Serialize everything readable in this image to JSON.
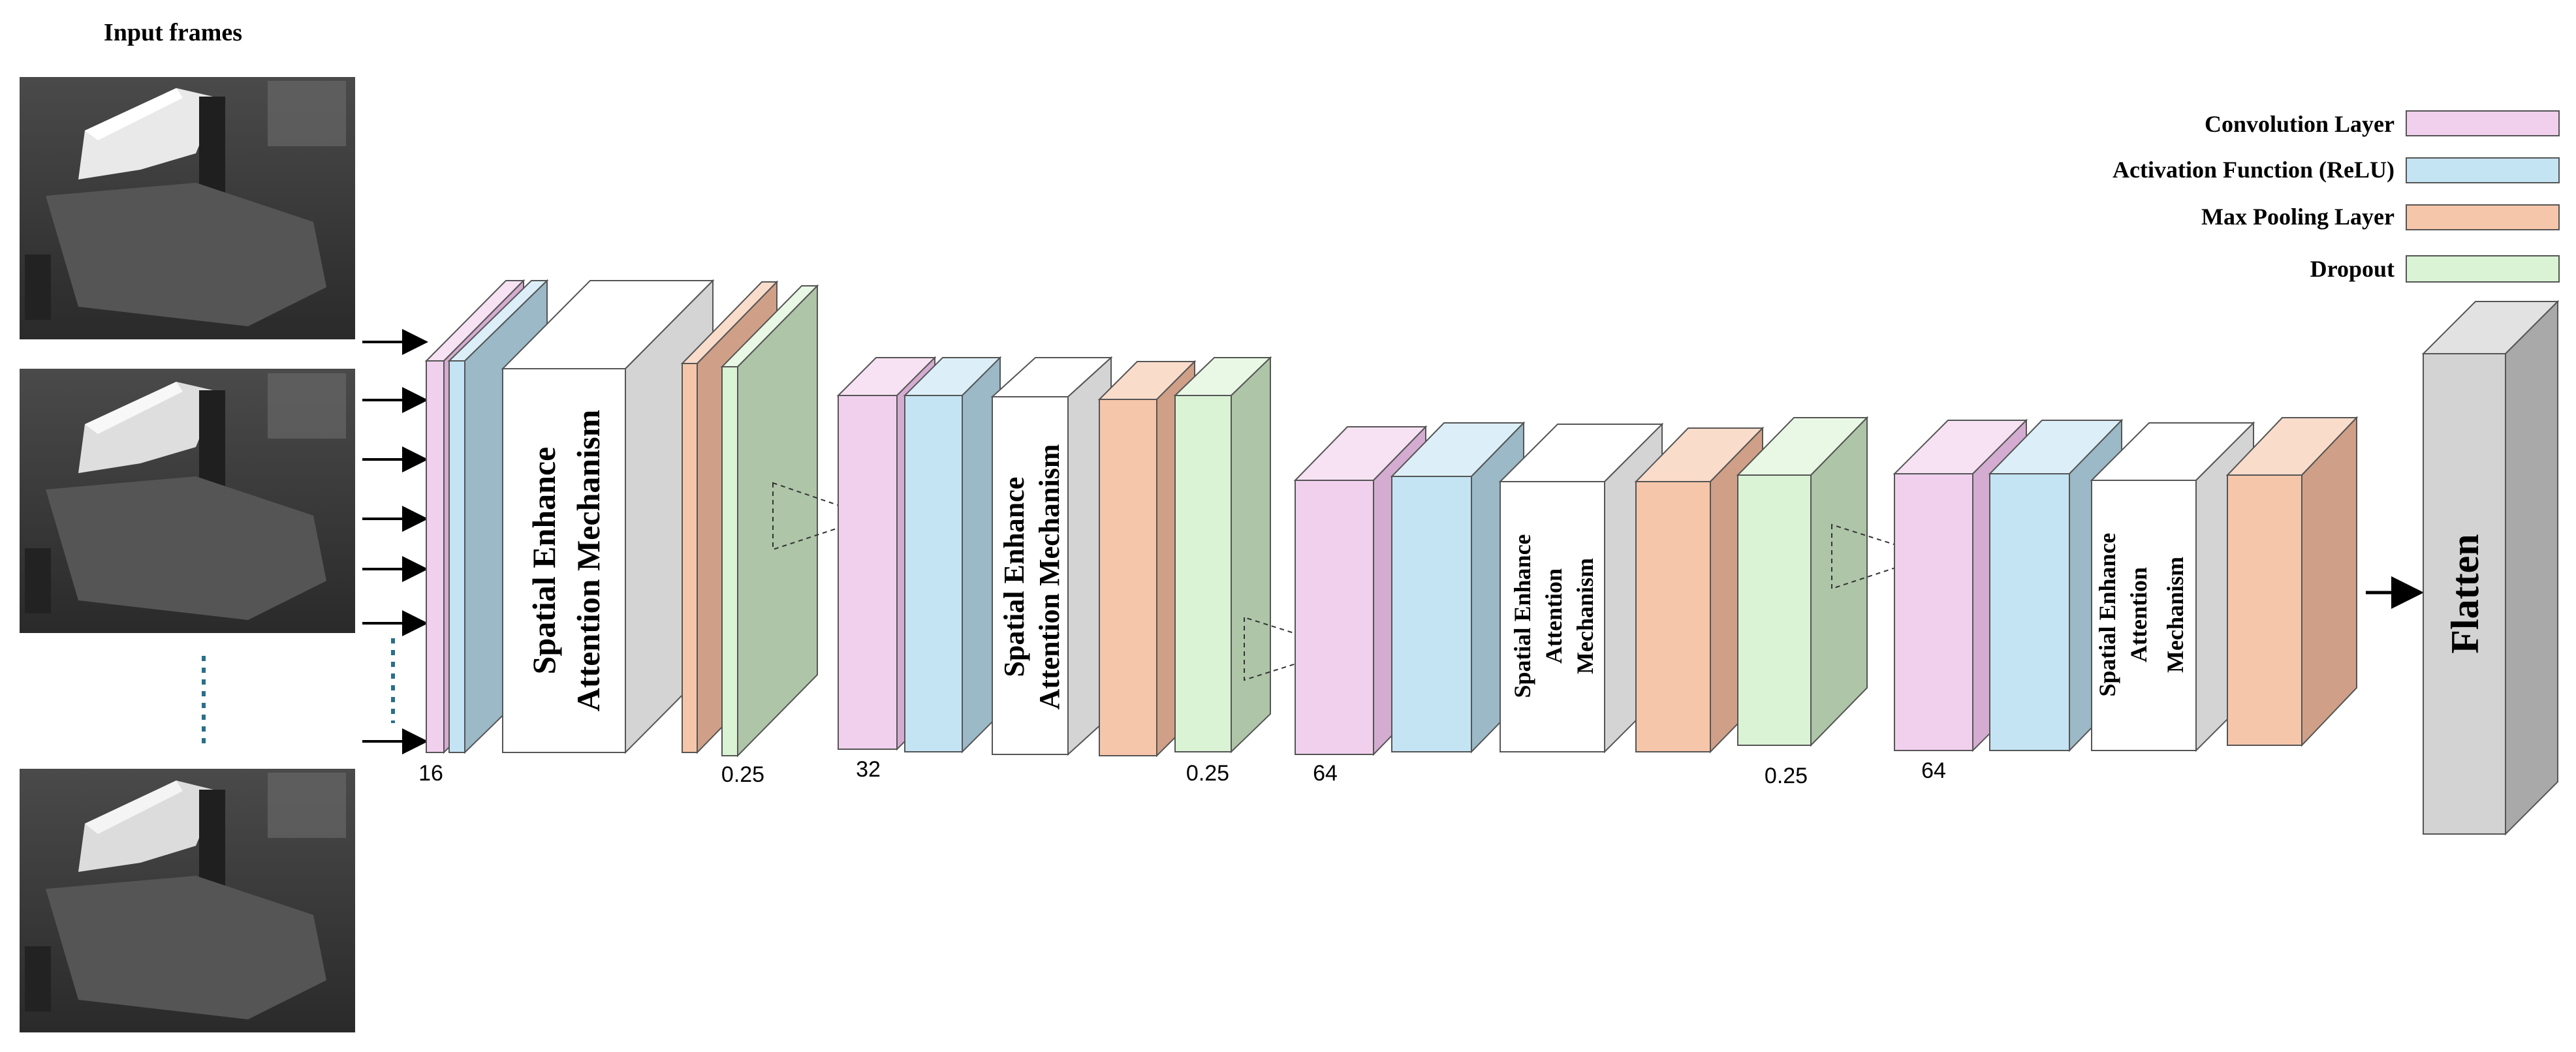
{
  "input_frames": {
    "title": "Input frames"
  },
  "legend": {
    "conv": {
      "label": "Convolution Layer",
      "color": "#f1d0ee"
    },
    "relu": {
      "label": "Activation Function (ReLU)",
      "color": "#c4e4f4"
    },
    "pool": {
      "label": "Max Pooling Layer",
      "color": "#f6c6aa"
    },
    "dropout": {
      "label": "Dropout",
      "color": "#d9f3d4"
    }
  },
  "attention": {
    "label_line1": "Spatial Enhance",
    "label_line2": "Attention Mechanism",
    "label_line3": "Attention",
    "label_line4": "Mechanism"
  },
  "block_labels": {
    "filters_1": "16",
    "dropout_1": "0.25",
    "filters_2": "32",
    "dropout_2": "0.25",
    "filters_3": "64",
    "dropout_3": "0.25",
    "filters_4": "64"
  },
  "flatten": {
    "label": "Flatten"
  },
  "colors": {
    "conv_side": "#d5acd1",
    "relu_side": "#9bb9c7",
    "pool_side": "#cfa087",
    "dropout_side": "#aec5a8",
    "attention_side": "#d4d4d4",
    "flatten_front": "#d3d3d3",
    "flatten_side": "#a9a9a9",
    "stroke": "#555555"
  }
}
